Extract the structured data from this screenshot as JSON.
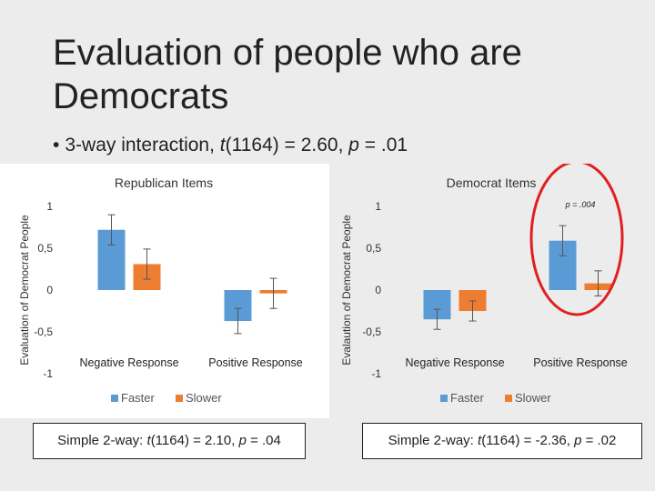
{
  "slide": {
    "title": "Evaluation of people who are Democrats",
    "bullet_symbol": "•",
    "bullet_pre": "3-way interaction, ",
    "bullet_t": "t",
    "bullet_mid": "(1164) = 2.60, ",
    "bullet_p": "p",
    "bullet_post": " = .01"
  },
  "notes": {
    "left": {
      "pre": "Simple 2-way: ",
      "t": "t",
      "mid": "(1164) = 2.10, ",
      "p": "p",
      "post": " = .04"
    },
    "right": {
      "pre": "Simple 2-way: ",
      "t": "t",
      "mid": "(1164) = -2.36, ",
      "p": "p",
      "post": " = .02"
    }
  },
  "colors": {
    "faster": "#5b9bd5",
    "slower": "#ed7d31",
    "highlight": "#e02020",
    "panel_bg": "#ffffff"
  },
  "chart_data": [
    {
      "type": "bar",
      "title": "Republican Items",
      "ylabel": "Evaluation of Democrat People",
      "categories": [
        "Negative Response",
        "Positive Response"
      ],
      "series": [
        {
          "name": "Faster",
          "values": [
            0.72,
            -0.37
          ],
          "error": [
            0.18,
            0.15
          ]
        },
        {
          "name": "Slower",
          "values": [
            0.31,
            -0.04
          ],
          "error": [
            0.18,
            0.18
          ]
        }
      ],
      "ylim": [
        -1,
        1
      ],
      "yticks": [
        -1,
        -0.5,
        0,
        0.5,
        1
      ],
      "ytick_labels": [
        "-1",
        "-0,5",
        "0",
        "0,5",
        "1"
      ],
      "grid": false,
      "legend": "bottom"
    },
    {
      "type": "bar",
      "title": "Democrat Items",
      "ylabel": "Evalaution of Democrat People",
      "categories": [
        "Negative Response",
        "Positive Response"
      ],
      "series": [
        {
          "name": "Faster",
          "values": [
            -0.35,
            0.59
          ],
          "error": [
            0.12,
            0.18
          ]
        },
        {
          "name": "Slower",
          "values": [
            -0.25,
            0.08
          ],
          "error": [
            0.12,
            0.15
          ]
        }
      ],
      "ylim": [
        -1,
        1
      ],
      "yticks": [
        -1,
        -0.5,
        0,
        0.5,
        1
      ],
      "ytick_labels": [
        "-1",
        "-0,5",
        "0",
        "0,5",
        "1"
      ],
      "grid": false,
      "legend": "bottom",
      "annotation": "p = .004"
    }
  ]
}
